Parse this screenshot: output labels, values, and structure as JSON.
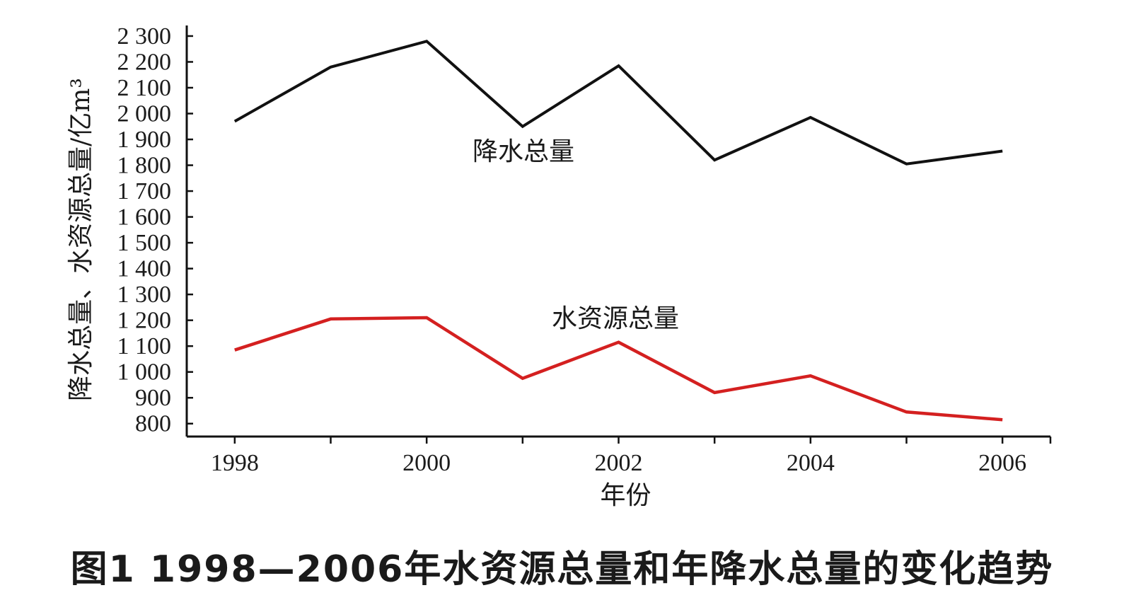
{
  "caption": "图1  1998—2006年水资源总量和年降水总量的变化趋势",
  "chart_data": {
    "type": "line",
    "title": "",
    "xlabel": "年份",
    "ylabel": "降水总量、水资源总量/亿m³",
    "x": [
      1998,
      1999,
      2000,
      2001,
      2002,
      2003,
      2004,
      2005,
      2006
    ],
    "xlim": [
      1997.5,
      2006.5
    ],
    "x_tick_labels": [
      "1998",
      "2000",
      "2002",
      "2004",
      "2006"
    ],
    "x_tick_values": [
      1998,
      2000,
      2002,
      2004,
      2006
    ],
    "ylim": [
      750,
      2330
    ],
    "y_ticks": [
      800,
      900,
      1000,
      1100,
      1200,
      1300,
      1400,
      1500,
      1600,
      1700,
      1800,
      1900,
      2000,
      2100,
      2200,
      2300
    ],
    "y_tick_labels": [
      "800",
      "900",
      "1 000",
      "1 100",
      "1 200",
      "1 300",
      "1 400",
      "1 500",
      "1 600",
      "1 700",
      "1 800",
      "1 900",
      "2 000",
      "2 100",
      "2 200",
      "2 300"
    ],
    "grid": false,
    "legend": "none",
    "series": [
      {
        "name": "降水总量",
        "color": "#111111",
        "values": [
          1970,
          2180,
          2280,
          1950,
          2185,
          1820,
          1985,
          1805,
          1855
        ]
      },
      {
        "name": "水资源总量",
        "color": "#d42020",
        "values": [
          1085,
          1205,
          1210,
          975,
          1115,
          920,
          985,
          845,
          815
        ]
      }
    ]
  }
}
